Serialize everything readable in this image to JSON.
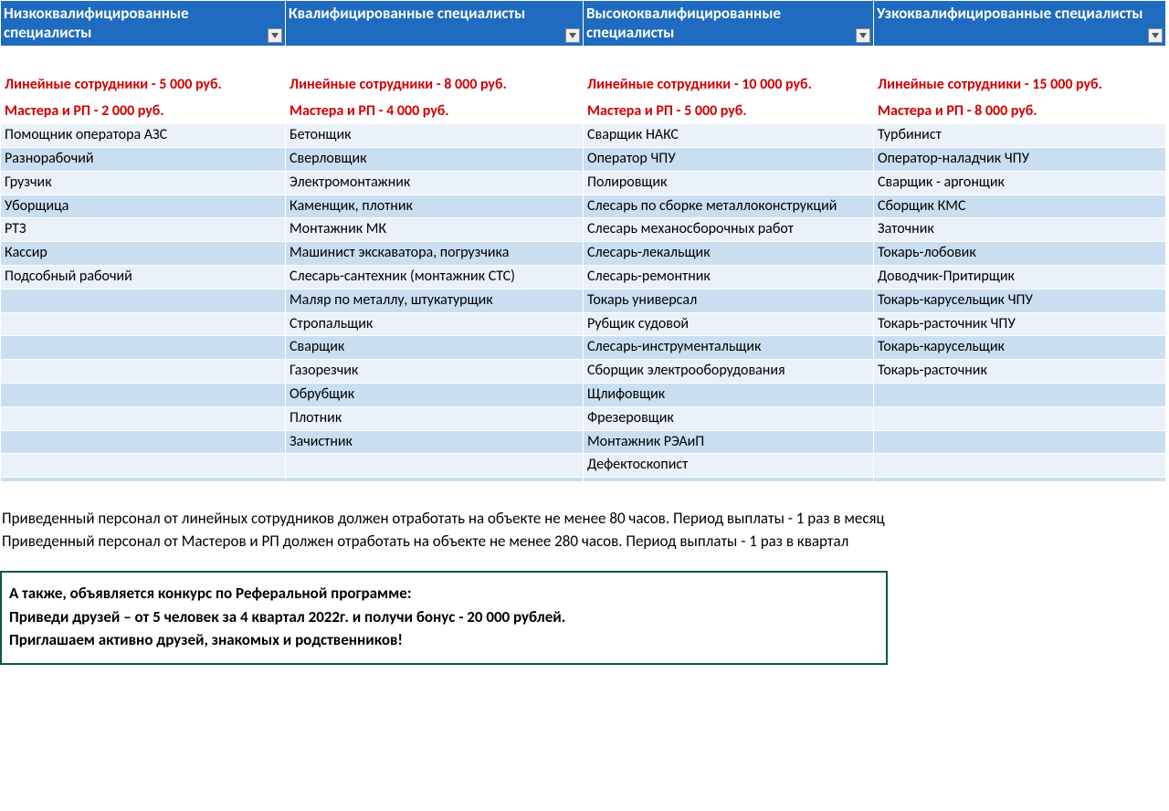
{
  "table": {
    "colors": {
      "header_bg": "#1f6bbf",
      "header_text": "#ffffff",
      "row_pale": "#eaf1f9",
      "row_med": "#c9dff1",
      "subheader_text": "#d10000",
      "border": "#ffffff"
    },
    "columns": [
      {
        "header": "Низкоквалифицированные специалисты",
        "sub1": "Линейные сотрудники - 5 000 руб.",
        "sub2": "Мастера и РП - 2 000 руб."
      },
      {
        "header": "Квалифицированные специалисты",
        "sub1": "Линейные сотрудники - 8 000 руб.",
        "sub2": "Мастера и РП - 4 000 руб."
      },
      {
        "header": "Высококвалифицированные специалисты",
        "sub1": "Линейные сотрудники - 10 000 руб.",
        "sub2": "Мастера и РП - 5 000 руб."
      },
      {
        "header": "Узкоквалифицированные специалисты",
        "sub1": "Линейные сотрудники - 15 000 руб.",
        "sub2": "Мастера и РП - 8 000 руб."
      }
    ],
    "rows": [
      [
        "Помощник оператора АЗС",
        "Бетонщик",
        "Сварщик НАКС",
        "Турбинист"
      ],
      [
        "Разнорабочий",
        "Сверловщик",
        "Оператор ЧПУ",
        "Оператор-наладчик ЧПУ"
      ],
      [
        "Грузчик",
        "Электромонтажник",
        "Полировщик",
        "Сварщик - аргонщик"
      ],
      [
        "Уборщица",
        "Каменщик, плотник",
        "Слесарь по сборке металлоконструкций",
        "Сборщик КМС"
      ],
      [
        "РТЗ",
        "Монтажник МК",
        "Слесарь механосборочных работ",
        "Заточник"
      ],
      [
        "Кассир",
        "Машинист экскаватора, погрузчика",
        "Слесарь-лекальщик",
        "Токарь-лобовик"
      ],
      [
        "Подсобный рабочий",
        "Слесарь-сантехник (монтажник СТС)",
        "Слесарь-ремонтник",
        "Доводчик-Притирщик"
      ],
      [
        "",
        "Маляр по металлу, штукатурщик",
        "Токарь универсал",
        "Токарь-карусельщик ЧПУ"
      ],
      [
        "",
        "Стропальщик",
        "Рубщик судовой",
        "Токарь-расточник ЧПУ"
      ],
      [
        "",
        "Сварщик",
        "Слесарь-инструментальщик",
        "Токарь-карусельщик"
      ],
      [
        "",
        "Газорезчик",
        "Сборщик электрооборудования",
        "Токарь-расточник"
      ],
      [
        "",
        "Обрубщик",
        "Щлифовщик",
        ""
      ],
      [
        "",
        "Плотник",
        "Фрезеровщик",
        ""
      ],
      [
        "",
        "Зачистник",
        "Монтажник РЭАиП",
        ""
      ],
      [
        "",
        "",
        "Дефектоскопист",
        ""
      ],
      [
        "",
        "",
        "",
        ""
      ]
    ]
  },
  "notes": {
    "line1": "Приведенный персонал от линейных сотрудников должен отработать на объекте не менее 80 часов. Период выплаты - 1 раз в месяц",
    "line2": "Приведенный персонал от Мастеров и РП должен отработать на объекте не менее 280 часов. Период выплаты  - 1 раз в квартал"
  },
  "contest": {
    "line1": "А также, объявляется конкурс по Реферальной программе:",
    "line2": "Приведи друзей – от 5 человек за 4 квартал 2022г. и получи бонус - 20 000 рублей.",
    "line3": "Приглашаем активно друзей, знакомых и родственников!",
    "border_color": "#0a5c3a"
  }
}
